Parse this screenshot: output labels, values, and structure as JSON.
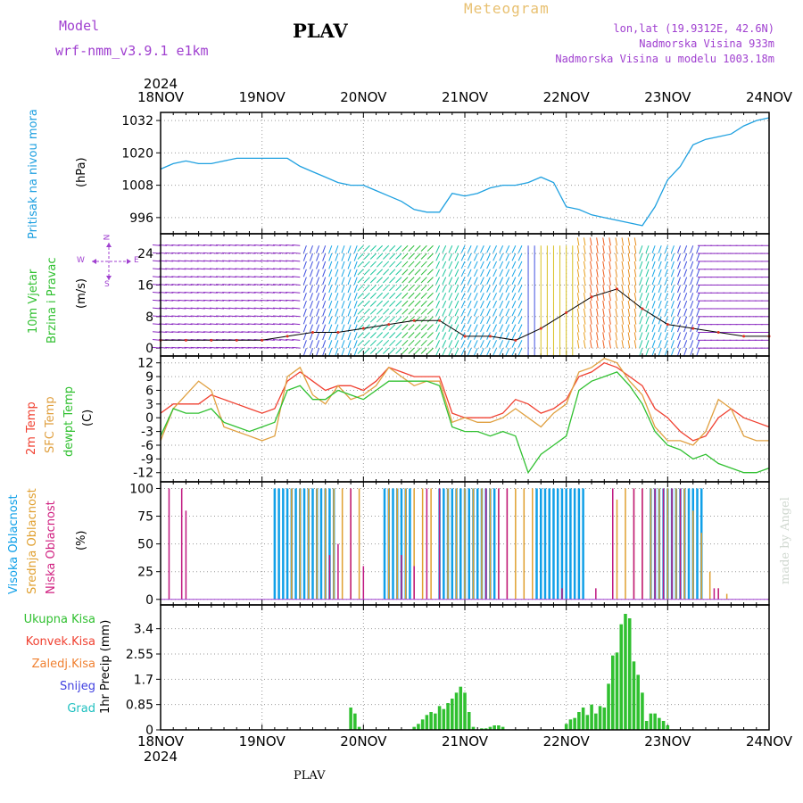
{
  "header": {
    "model_label": "Model",
    "model_name": "wrf-nmm_v3.9.1 e1km",
    "station": "PLAV",
    "title": "Meteogram",
    "coords": "lon,lat (19.9312E, 42.6N)",
    "elevation": "Nadmorska Visina 933m",
    "model_elevation": "Nadmorska Visina u modelu 1003.18m"
  },
  "footer": {
    "station": "PLAV",
    "credit": "made by Angel"
  },
  "colors": {
    "pressure": "#1ea0e0",
    "temp2m": "#f04030",
    "sfctemp": "#e0a040",
    "dewpt": "#30c030",
    "high_cloud": "#10a0e8",
    "mid_cloud": "#e0a030",
    "low_cloud": "#c01880",
    "precip_total": "#30c030",
    "precip_conv": "#f04030",
    "precip_freez": "#f08030",
    "precip_snow": "#4040e0",
    "precip_hail": "#20c0c0",
    "wind_label": "#30c030",
    "cloud_label_high": "#10a0e8",
    "cloud_label_mid": "#e0a030",
    "cloud_label_low": "#d02080"
  },
  "chart_data": [
    {
      "type": "line",
      "panel": "pressure",
      "label_left": "Pritisak na nivou mora",
      "ylabel": "(hPa)",
      "x_ticks": [
        "18NOV",
        "19NOV",
        "20NOV",
        "21NOV",
        "22NOV",
        "23NOV",
        "24NOV"
      ],
      "x_year": "2024",
      "xlim": [
        0,
        144
      ],
      "ylim": [
        990,
        1035
      ],
      "y_ticks": [
        996,
        1008,
        1020,
        1032
      ],
      "grid": true,
      "series": [
        {
          "x": [
            0,
            3,
            6,
            9,
            12,
            15,
            18,
            21,
            24,
            27,
            30,
            33,
            36,
            39,
            42,
            45,
            48,
            51,
            54,
            57,
            60,
            63,
            66,
            69,
            72,
            75,
            78,
            81,
            84,
            87,
            90,
            93,
            96,
            99,
            102,
            105,
            108,
            111,
            114,
            117,
            120,
            123,
            126,
            129,
            132,
            135,
            138,
            141,
            144
          ],
          "y": [
            1014,
            1016,
            1017,
            1016,
            1016,
            1017,
            1018,
            1018,
            1018,
            1018,
            1018,
            1015,
            1013,
            1011,
            1009,
            1008,
            1008,
            1006,
            1004,
            1002,
            999,
            998,
            998,
            1005,
            1004,
            1005,
            1007,
            1008,
            1008,
            1009,
            1011,
            1009,
            1000,
            999,
            997,
            996,
            995,
            994,
            993,
            1000,
            1010,
            1015,
            1023,
            1025,
            1026,
            1027,
            1030,
            1032,
            1033
          ]
        }
      ]
    },
    {
      "type": "scatter",
      "panel": "wind",
      "label_left_1": "10m Vjetar",
      "label_left_2": "Brzina i Pravac",
      "ylabel": "(m/s)",
      "compass_n": "N",
      "compass_w": "W",
      "compass_e": "E",
      "compass_s": "S",
      "xlim": [
        0,
        144
      ],
      "ylim": [
        -2,
        29
      ],
      "y_ticks": [
        0,
        8,
        16,
        24
      ],
      "grid": true,
      "series": [
        {
          "name": "speed",
          "x": [
            0,
            6,
            12,
            18,
            24,
            30,
            36,
            42,
            48,
            54,
            60,
            66,
            72,
            78,
            84,
            90,
            96,
            102,
            108,
            114,
            120,
            126,
            132,
            138,
            144
          ],
          "y": [
            2,
            2,
            2,
            2,
            2,
            3,
            4,
            4,
            5,
            6,
            7,
            7,
            3,
            3,
            2,
            5,
            9,
            13,
            15,
            10,
            6,
            5,
            4,
            3,
            3
          ]
        }
      ]
    },
    {
      "type": "line",
      "panel": "temperature",
      "label_left_1": "2m Temp",
      "label_left_2": "SFC Temp",
      "label_left_3": "dewpt Temp",
      "ylabel": "(C)",
      "xlim": [
        0,
        144
      ],
      "ylim": [
        -14,
        13.5
      ],
      "y_ticks": [
        -12,
        -9,
        -6,
        -3,
        0,
        3,
        6,
        9,
        12
      ],
      "grid": true,
      "series": [
        {
          "x": [
            0,
            3,
            6,
            9,
            12,
            15,
            18,
            21,
            24,
            27,
            30,
            33,
            36,
            39,
            42,
            45,
            48,
            51,
            54,
            57,
            60,
            63,
            66,
            69,
            72,
            75,
            78,
            81,
            84,
            87,
            90,
            93,
            96,
            99,
            102,
            105,
            108,
            111,
            114,
            117,
            120,
            123,
            126,
            129,
            132,
            135,
            138,
            141,
            144
          ],
          "y": [
            1,
            3,
            3,
            3,
            5,
            4,
            3,
            2,
            1,
            2,
            8,
            10,
            8,
            6,
            7,
            7,
            6,
            8,
            11,
            10,
            9,
            9,
            9,
            1,
            0,
            0,
            0,
            1,
            4,
            3,
            1,
            2,
            4,
            9,
            10,
            12,
            11,
            9,
            7,
            2,
            0,
            -3,
            -5,
            -4,
            0,
            2,
            0,
            -1,
            -2
          ]
        },
        {
          "x": [
            0,
            3,
            6,
            9,
            12,
            15,
            18,
            21,
            24,
            27,
            30,
            33,
            36,
            39,
            42,
            45,
            48,
            51,
            54,
            57,
            60,
            63,
            66,
            69,
            72,
            75,
            78,
            81,
            84,
            87,
            90,
            93,
            96,
            99,
            102,
            105,
            108,
            111,
            114,
            117,
            120,
            123,
            126,
            129,
            132,
            135,
            138,
            141,
            144
          ],
          "y": [
            -5,
            2,
            5,
            8,
            6,
            -2,
            -3,
            -4,
            -5,
            -4,
            9,
            11,
            5,
            3,
            7,
            4,
            5,
            7,
            11,
            9,
            7,
            8,
            8,
            -1,
            0,
            -1,
            -1,
            0,
            2,
            0,
            -2,
            1,
            3,
            10,
            11,
            13,
            12,
            8,
            5,
            -2,
            -5,
            -5,
            -6,
            -3,
            4,
            2,
            -4,
            -5,
            -5
          ]
        },
        {
          "x": [
            0,
            3,
            6,
            9,
            12,
            15,
            18,
            21,
            24,
            27,
            30,
            33,
            36,
            39,
            42,
            45,
            48,
            51,
            54,
            57,
            60,
            63,
            66,
            69,
            72,
            75,
            78,
            81,
            84,
            87,
            90,
            93,
            96,
            99,
            102,
            105,
            108,
            111,
            114,
            117,
            120,
            123,
            126,
            129,
            132,
            135,
            138,
            141,
            144
          ],
          "y": [
            -4,
            2,
            1,
            1,
            2,
            -1,
            -2,
            -3,
            -2,
            -1,
            6,
            7,
            4,
            4,
            6,
            5,
            4,
            6,
            8,
            8,
            8,
            8,
            7,
            -2,
            -3,
            -3,
            -4,
            -3,
            -4,
            -12,
            -8,
            -6,
            -4,
            6,
            8,
            9,
            10,
            7,
            3,
            -3,
            -6,
            -7,
            -9,
            -8,
            -10,
            -11,
            -12,
            -12,
            -11
          ]
        }
      ]
    },
    {
      "type": "bar",
      "panel": "cloud",
      "label_left_1": "Visoka Oblacnost",
      "label_left_2": "Srednja Oblacnost",
      "label_left_3": "Niska Oblacnost",
      "ylabel": "(%)",
      "xlim": [
        0,
        144
      ],
      "ylim": [
        -5,
        106
      ],
      "y_ticks": [
        0,
        25,
        50,
        75,
        100
      ],
      "grid": true,
      "series": [
        {
          "x": [
            27,
            28,
            29,
            30,
            31,
            32,
            33,
            34,
            35,
            36,
            37,
            38,
            39,
            40,
            41,
            53,
            54,
            55,
            56,
            57,
            58,
            59,
            66,
            67,
            68,
            69,
            70,
            71,
            72,
            73,
            74,
            75,
            76,
            77,
            78,
            79,
            89,
            90,
            91,
            92,
            93,
            94,
            95,
            96,
            97,
            98,
            99,
            100,
            116,
            117,
            118,
            119,
            120,
            121,
            122,
            123,
            124,
            125,
            126,
            127,
            128
          ],
          "y": [
            100,
            100,
            100,
            100,
            100,
            100,
            100,
            100,
            100,
            100,
            100,
            100,
            100,
            100,
            100,
            100,
            100,
            100,
            100,
            100,
            100,
            100,
            100,
            100,
            100,
            100,
            100,
            100,
            100,
            100,
            100,
            100,
            100,
            100,
            100,
            100,
            100,
            100,
            100,
            100,
            100,
            100,
            100,
            100,
            100,
            100,
            100,
            100,
            100,
            100,
            100,
            100,
            100,
            100,
            100,
            100,
            100,
            100,
            100,
            100,
            100
          ]
        },
        {
          "x": [
            31,
            33,
            35,
            37,
            39,
            41,
            43,
            45,
            47,
            54,
            56,
            58,
            60,
            62,
            64,
            68,
            70,
            72,
            74,
            76,
            78,
            80,
            82,
            84,
            86,
            88,
            108,
            110,
            112,
            114,
            116,
            118,
            120,
            122,
            124,
            126,
            128,
            130,
            132,
            134,
            136,
            138
          ],
          "y": [
            100,
            100,
            100,
            100,
            100,
            100,
            100,
            100,
            100,
            100,
            100,
            100,
            100,
            100,
            100,
            100,
            100,
            100,
            100,
            100,
            100,
            100,
            100,
            100,
            100,
            100,
            90,
            100,
            100,
            100,
            100,
            100,
            100,
            100,
            100,
            80,
            60,
            25,
            10,
            5,
            0,
            0
          ]
        },
        {
          "x": [
            2,
            5,
            6,
            40,
            42,
            45,
            48,
            57,
            60,
            63,
            66,
            77,
            80,
            82,
            95,
            103,
            107,
            112,
            114,
            117,
            119,
            121,
            123,
            131,
            132
          ],
          "y": [
            100,
            100,
            80,
            40,
            50,
            100,
            30,
            40,
            30,
            100,
            100,
            100,
            100,
            100,
            10,
            10,
            100,
            100,
            100,
            100,
            100,
            100,
            100,
            10,
            10
          ]
        }
      ]
    },
    {
      "type": "bar",
      "panel": "precip",
      "label_1": "Ukupna Kisa",
      "label_2": "Konvek.Kisa",
      "label_3": "Zaledj.Kisa",
      "label_4": "Snijeg",
      "label_5": "Grad",
      "ylabel": "1hr Precip (mm)",
      "xlim": [
        0,
        144
      ],
      "ylim": [
        0,
        4.2
      ],
      "y_ticks": [
        0,
        0.85,
        1.7,
        2.55,
        3.4
      ],
      "y_tick_labels": [
        "0",
        "0.85",
        "1.7",
        "2.55",
        "3.4"
      ],
      "grid": true,
      "x_ticks": [
        "18NOV",
        "19NOV",
        "20NOV",
        "21NOV",
        "22NOV",
        "23NOV",
        "24NOV"
      ],
      "x_year": "2024",
      "series": [
        {
          "x": [
            45,
            46,
            47,
            60,
            61,
            62,
            63,
            64,
            65,
            66,
            67,
            68,
            69,
            70,
            71,
            72,
            73,
            74,
            76,
            77,
            78,
            79,
            80,
            81,
            96,
            97,
            98,
            99,
            100,
            101,
            102,
            103,
            104,
            105,
            106,
            107,
            108,
            109,
            110,
            111,
            112,
            113,
            114,
            115,
            116,
            117,
            118,
            119,
            120
          ],
          "y": [
            0.75,
            0.55,
            0.1,
            0.1,
            0.2,
            0.35,
            0.5,
            0.6,
            0.55,
            0.8,
            0.7,
            0.9,
            1.05,
            1.25,
            1.45,
            1.25,
            0.6,
            0.1,
            0.05,
            0.05,
            0.1,
            0.15,
            0.15,
            0.1,
            0.2,
            0.35,
            0.4,
            0.6,
            0.75,
            0.5,
            0.85,
            0.55,
            0.8,
            0.75,
            1.55,
            2.5,
            2.6,
            3.55,
            3.9,
            3.75,
            2.3,
            1.85,
            1.25,
            0.3,
            0.55,
            0.55,
            0.4,
            0.3,
            0.15
          ]
        }
      ]
    }
  ]
}
